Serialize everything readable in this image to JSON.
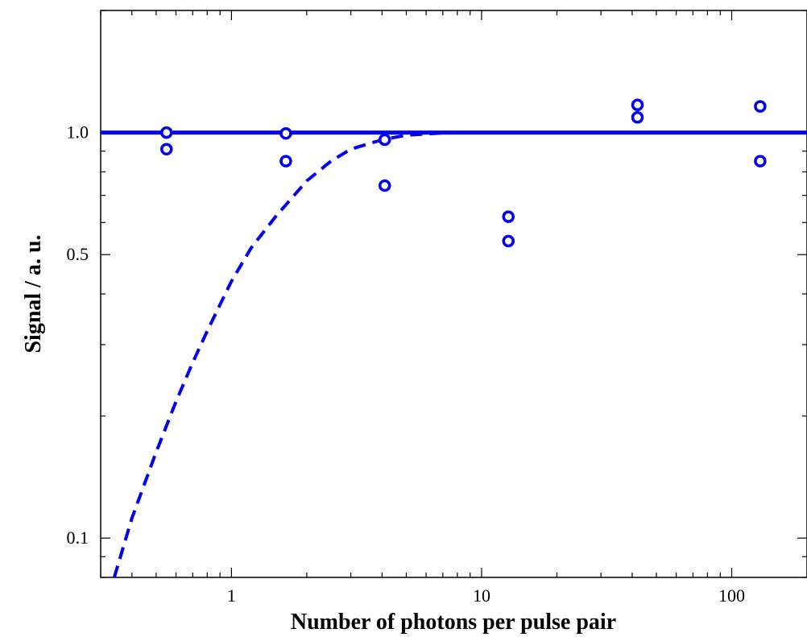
{
  "chart_data": {
    "type": "scatter",
    "title": "",
    "xlabel": "Number of photons per pulse pair",
    "ylabel": "Signal / a. u.",
    "x_scale": "log",
    "y_scale": "log",
    "xlim": [
      0.3,
      200
    ],
    "ylim": [
      0.08,
      2.0
    ],
    "x_ticks": [
      {
        "value": 1,
        "label": "1"
      },
      {
        "value": 10,
        "label": "10"
      },
      {
        "value": 100,
        "label": "100"
      }
    ],
    "y_ticks": [
      {
        "value": 0.1,
        "label": "0.1"
      },
      {
        "value": 0.5,
        "label": "0.5"
      },
      {
        "value": 1.0,
        "label": "1.0"
      }
    ],
    "grid": false,
    "color": "#0000ee",
    "series": [
      {
        "kind": "markers",
        "marker": "open-circle",
        "points": [
          {
            "x": 0.55,
            "y": 1.0
          },
          {
            "x": 0.55,
            "y": 0.91
          },
          {
            "x": 1.65,
            "y": 0.995
          },
          {
            "x": 1.65,
            "y": 0.85
          },
          {
            "x": 4.1,
            "y": 0.96
          },
          {
            "x": 4.1,
            "y": 0.74
          },
          {
            "x": 12.8,
            "y": 0.62
          },
          {
            "x": 12.8,
            "y": 0.54
          },
          {
            "x": 42,
            "y": 1.17
          },
          {
            "x": 42,
            "y": 1.09
          },
          {
            "x": 130,
            "y": 1.16
          },
          {
            "x": 130,
            "y": 0.85
          }
        ]
      },
      {
        "kind": "line",
        "style": "solid",
        "points": [
          {
            "x": 0.3,
            "y": 1.0
          },
          {
            "x": 200,
            "y": 1.0
          }
        ]
      },
      {
        "kind": "line",
        "style": "dashed",
        "points": [
          {
            "x": 0.34,
            "y": 0.08
          },
          {
            "x": 0.4,
            "y": 0.112
          },
          {
            "x": 0.5,
            "y": 0.163
          },
          {
            "x": 0.6,
            "y": 0.217
          },
          {
            "x": 0.7,
            "y": 0.271
          },
          {
            "x": 0.8,
            "y": 0.324
          },
          {
            "x": 1.0,
            "y": 0.43
          },
          {
            "x": 1.2,
            "y": 0.52
          },
          {
            "x": 1.5,
            "y": 0.62
          },
          {
            "x": 2.0,
            "y": 0.76
          },
          {
            "x": 2.5,
            "y": 0.85
          },
          {
            "x": 3.0,
            "y": 0.91
          },
          {
            "x": 4.0,
            "y": 0.96
          },
          {
            "x": 5.0,
            "y": 0.985
          },
          {
            "x": 7.0,
            "y": 0.998
          },
          {
            "x": 10.0,
            "y": 1.0
          }
        ]
      }
    ]
  }
}
